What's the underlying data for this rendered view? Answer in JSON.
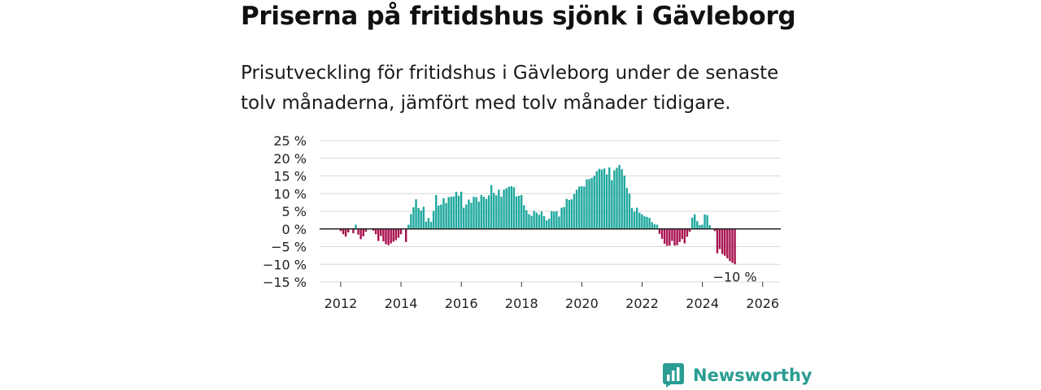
{
  "title": "Priserna på fritidshus sjönk i Gävleborg",
  "subtitle": "Prisutveckling för fritidshus i Gävleborg under de senaste tolv månaderna, jämfört med tolv månader tidigare.",
  "brand": "Newsworthy",
  "colors": {
    "positive": "#1fa89e",
    "negative": "#a8124e",
    "grid": "#d9d9d9",
    "zero": "#222222",
    "brand": "#2a9d92"
  },
  "chart_data": {
    "type": "bar",
    "y_ticks": [
      25,
      20,
      15,
      10,
      5,
      0,
      -5,
      -10,
      -15
    ],
    "y_tick_labels": [
      "25 %",
      "20 %",
      "15 %",
      "10 %",
      "5 %",
      "0 %",
      "−5 %",
      "−10 %",
      "−15 %"
    ],
    "ylim": [
      -15,
      25
    ],
    "x_ticks": [
      2012,
      2014,
      2016,
      2018,
      2020,
      2022,
      2024,
      2026
    ],
    "x_tick_labels": [
      "2012",
      "2014",
      "2016",
      "2018",
      "2020",
      "2022",
      "2024",
      "2026"
    ],
    "xlim": [
      2011.3,
      2026.6
    ],
    "x_start": 2012.0,
    "x_step": 0.0833,
    "values": [
      -0.6,
      -1.5,
      -2.2,
      -1.0,
      0,
      -1.2,
      1.2,
      -1.6,
      -2.9,
      -2.1,
      -0.8,
      0,
      0,
      -0.5,
      -1.5,
      -3.4,
      -2.0,
      -3.5,
      -4.3,
      -4.6,
      -4.1,
      -3.6,
      -3.2,
      -2.5,
      -1.5,
      0,
      -3.7,
      1.2,
      4.2,
      6.1,
      8.4,
      5.9,
      5.2,
      6.3,
      2.1,
      3.1,
      2.0,
      5.1,
      9.6,
      6.6,
      6.9,
      8.7,
      7.3,
      9.0,
      9.1,
      9.2,
      10.5,
      9.4,
      10.5,
      6.0,
      6.9,
      8.3,
      7.4,
      9.1,
      9.0,
      7.7,
      9.6,
      9.1,
      8.5,
      9.5,
      12.4,
      10.2,
      9.5,
      11.1,
      9.1,
      11.1,
      11.5,
      11.9,
      12.1,
      11.8,
      9.2,
      9.4,
      9.6,
      6.7,
      5.3,
      4.2,
      3.7,
      5.1,
      4.6,
      4.0,
      4.9,
      3.6,
      2.4,
      2.9,
      5.0,
      4.9,
      5.0,
      3.5,
      6.0,
      6.2,
      8.5,
      8.2,
      8.4,
      9.9,
      11.1,
      12.0,
      12.1,
      12.0,
      14.0,
      14.1,
      14.4,
      15.0,
      16.3,
      17.0,
      16.8,
      17.1,
      15.4,
      17.4,
      13.8,
      16.6,
      17.3,
      18.1,
      16.9,
      15.1,
      11.6,
      10.0,
      5.9,
      4.9,
      6.0,
      4.6,
      4.1,
      3.6,
      3.4,
      3.1,
      1.9,
      1.3,
      1.2,
      -1.4,
      -2.8,
      -4.2,
      -4.8,
      -4.7,
      -3.4,
      -4.7,
      -4.6,
      -3.7,
      -2.9,
      -4.1,
      -2.2,
      -0.8,
      3.2,
      4.1,
      2.2,
      1.1,
      1.2,
      4.1,
      3.9,
      1.1,
      0,
      -0.6,
      -6.9,
      -5.7,
      -7.1,
      -7.6,
      -8.3,
      -9.1,
      -9.6,
      -10.0
    ],
    "annotation": {
      "text": "−10 %",
      "value": -10
    }
  }
}
